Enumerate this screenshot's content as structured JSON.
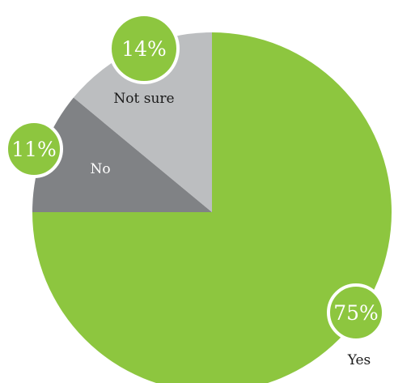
{
  "chart_data": {
    "type": "pie",
    "start": "12 o'clock",
    "direction": "clockwise",
    "slices": [
      {
        "label": "Yes",
        "value": 75,
        "percent_label": "75%",
        "color": "#8dc63f"
      },
      {
        "label": "No",
        "value": 11,
        "percent_label": "11%",
        "color": "#808285"
      },
      {
        "label": "Not sure",
        "value": 14,
        "percent_label": "14%",
        "color": "#bcbec0"
      }
    ],
    "badge_color": "#8dc63f",
    "badge_border_color": "#ffffff",
    "label_color_on_light": "#1a1a1a",
    "label_color_on_dark": "#ffffff"
  }
}
